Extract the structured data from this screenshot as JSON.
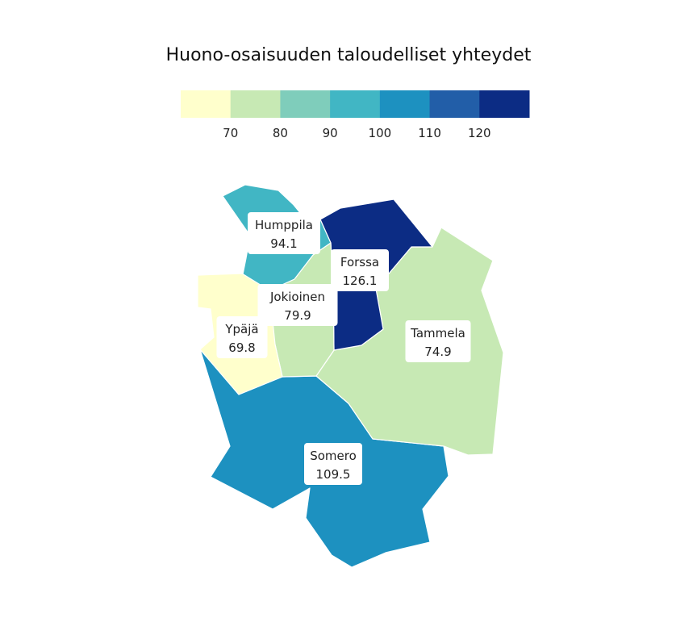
{
  "title": "Huono-osaisuuden taloudelliset yhteydet",
  "legend": {
    "colors": [
      "#ffffcc",
      "#c7e9b4",
      "#7fcdbb",
      "#41b6c4",
      "#1d91c0",
      "#225ea8",
      "#0c2c84"
    ],
    "breaks": [
      70,
      80,
      90,
      100,
      110,
      120
    ]
  },
  "regions": [
    {
      "name": "Humppila",
      "value": "94.1",
      "color": "#41b6c4"
    },
    {
      "name": "Forssa",
      "value": "126.1",
      "color": "#0c2c84"
    },
    {
      "name": "Jokioinen",
      "value": "79.9",
      "color": "#c7e9b4"
    },
    {
      "name": "Ypäjä",
      "value": "69.8",
      "color": "#ffffcc"
    },
    {
      "name": "Tammela",
      "value": "74.9",
      "color": "#c7e9b4"
    },
    {
      "name": "Somero",
      "value": "109.5",
      "color": "#1d91c0"
    }
  ]
}
